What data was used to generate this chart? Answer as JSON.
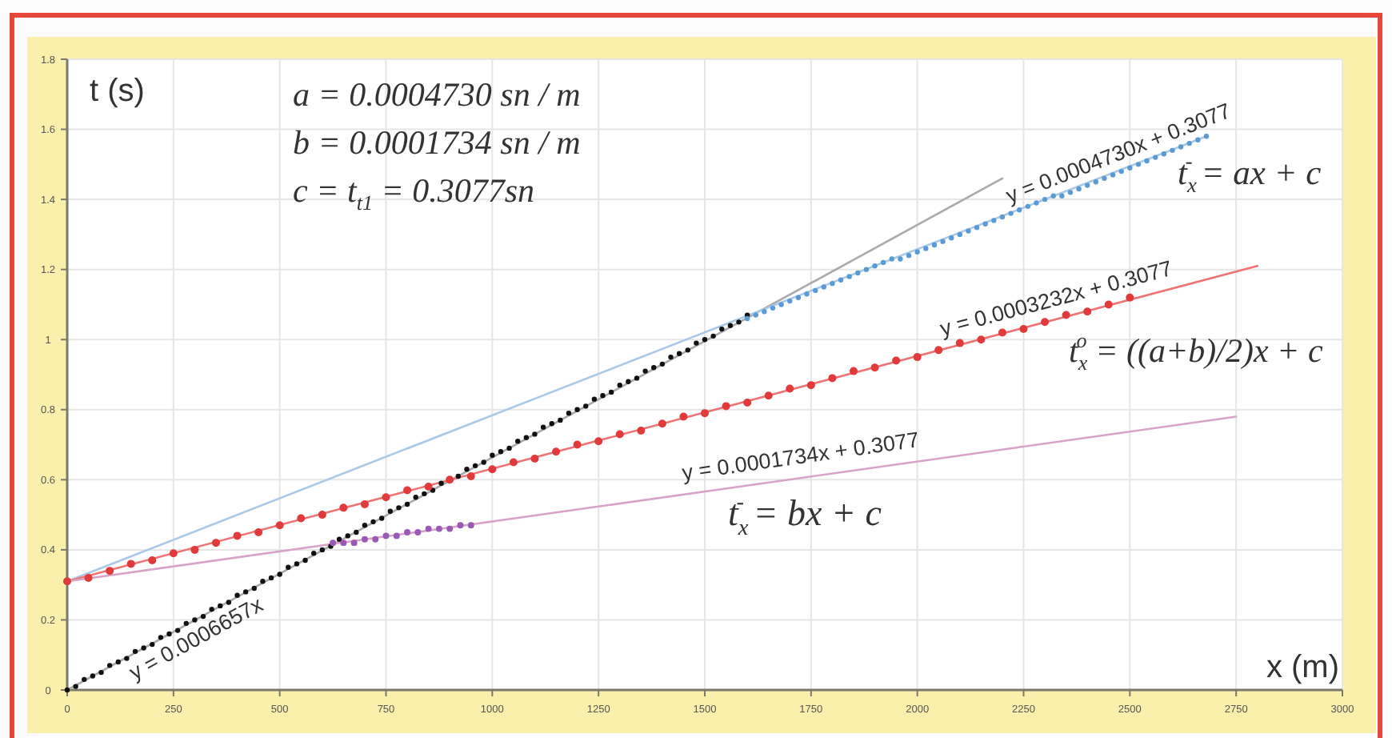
{
  "chart_data": {
    "type": "scatter",
    "xlabel": "x (m)",
    "ylabel": "t (s)",
    "xlim": [
      0,
      3000
    ],
    "ylim": [
      0,
      1.8
    ],
    "xticks": [
      0,
      250,
      500,
      750,
      1000,
      1250,
      1500,
      1750,
      2000,
      2250,
      2500,
      2750,
      3000
    ],
    "yticks": [
      0,
      0.2,
      0.4,
      0.6,
      0.8,
      1,
      1.2,
      1.4,
      1.6,
      1.8
    ],
    "grid": true,
    "marker": "circle",
    "line_style": "solid",
    "series": [
      {
        "type": "line",
        "marker": "none",
        "color": "#aaaaaa",
        "x": [
          0,
          2200
        ],
        "values": [
          0,
          1.46
        ]
      },
      {
        "type": "line",
        "marker": "none",
        "color": "#a9c9e6",
        "x": [
          0,
          2680
        ],
        "values": [
          0.31,
          1.58
        ]
      },
      {
        "type": "line",
        "marker": "none",
        "color": "#ee7474",
        "x": [
          0,
          2800
        ],
        "values": [
          0.31,
          1.21
        ]
      },
      {
        "type": "line",
        "marker": "none",
        "color": "#d9a3c9",
        "x": [
          0,
          2750
        ],
        "values": [
          0.31,
          0.78
        ]
      },
      {
        "color": "#111111",
        "x": [
          0,
          20,
          40,
          60,
          80,
          100,
          120,
          140,
          160,
          180,
          200,
          220,
          240,
          260,
          280,
          300,
          320,
          340,
          360,
          380,
          400,
          420,
          440,
          460,
          480,
          500,
          520,
          540,
          560,
          580,
          600,
          620,
          640,
          660,
          680,
          700,
          720,
          740,
          760,
          780,
          800,
          820,
          840,
          860,
          880,
          920,
          940,
          960,
          980,
          1000,
          1020,
          1040,
          1060,
          1080,
          1100,
          1120,
          1140,
          1160,
          1180,
          1200,
          1220,
          1240,
          1260,
          1280,
          1300,
          1320,
          1340,
          1360,
          1380,
          1400,
          1420,
          1440,
          1460,
          1480,
          1500,
          1520,
          1540,
          1560,
          1580,
          1600
        ],
        "values": [
          0,
          0.01,
          0.03,
          0.04,
          0.05,
          0.07,
          0.08,
          0.09,
          0.11,
          0.12,
          0.13,
          0.15,
          0.16,
          0.17,
          0.19,
          0.2,
          0.21,
          0.23,
          0.24,
          0.25,
          0.27,
          0.28,
          0.29,
          0.31,
          0.32,
          0.33,
          0.35,
          0.36,
          0.37,
          0.39,
          0.4,
          0.41,
          0.43,
          0.44,
          0.45,
          0.47,
          0.48,
          0.49,
          0.51,
          0.52,
          0.53,
          0.55,
          0.56,
          0.57,
          0.59,
          0.61,
          0.63,
          0.64,
          0.65,
          0.67,
          0.68,
          0.69,
          0.71,
          0.72,
          0.73,
          0.75,
          0.76,
          0.77,
          0.79,
          0.8,
          0.81,
          0.83,
          0.84,
          0.85,
          0.87,
          0.88,
          0.89,
          0.91,
          0.92,
          0.93,
          0.95,
          0.96,
          0.97,
          0.99,
          1,
          1.01,
          1.03,
          1.04,
          1.05,
          1.07
        ]
      },
      {
        "color": "#5b9bd5",
        "x": [
          1600,
          1620,
          1640,
          1660,
          1680,
          1700,
          1720,
          1740,
          1760,
          1780,
          1800,
          1820,
          1840,
          1860,
          1880,
          1900,
          1920,
          1940,
          1960,
          1980,
          2000,
          2020,
          2040,
          2060,
          2080,
          2100,
          2120,
          2140,
          2160,
          2180,
          2200,
          2220,
          2240,
          2260,
          2280,
          2300,
          2320,
          2340,
          2360,
          2380,
          2400,
          2420,
          2440,
          2460,
          2480,
          2500,
          2520,
          2540,
          2560,
          2580,
          2600,
          2620,
          2640,
          2660,
          2680
        ],
        "values": [
          1.06,
          1.07,
          1.08,
          1.09,
          1.1,
          1.11,
          1.12,
          1.13,
          1.14,
          1.15,
          1.16,
          1.17,
          1.18,
          1.19,
          1.2,
          1.21,
          1.22,
          1.23,
          1.23,
          1.24,
          1.25,
          1.26,
          1.27,
          1.28,
          1.29,
          1.3,
          1.31,
          1.32,
          1.33,
          1.34,
          1.35,
          1.36,
          1.37,
          1.38,
          1.39,
          1.4,
          1.41,
          1.41,
          1.42,
          1.43,
          1.44,
          1.45,
          1.46,
          1.47,
          1.48,
          1.49,
          1.5,
          1.51,
          1.52,
          1.53,
          1.54,
          1.55,
          1.56,
          1.57,
          1.58
        ]
      },
      {
        "color": "#e03a3a",
        "x": [
          0,
          50,
          100,
          150,
          200,
          250,
          300,
          350,
          400,
          450,
          500,
          550,
          600,
          650,
          700,
          750,
          800,
          850,
          900,
          950,
          1000,
          1050,
          1100,
          1150,
          1200,
          1250,
          1300,
          1350,
          1400,
          1450,
          1500,
          1550,
          1600,
          1650,
          1700,
          1750,
          1800,
          1850,
          1900,
          1950,
          2000,
          2050,
          2100,
          2150,
          2200,
          2250,
          2300,
          2350,
          2400,
          2450,
          2500
        ],
        "values": [
          0.31,
          0.32,
          0.34,
          0.36,
          0.37,
          0.39,
          0.4,
          0.42,
          0.44,
          0.45,
          0.47,
          0.49,
          0.5,
          0.52,
          0.53,
          0.55,
          0.57,
          0.58,
          0.6,
          0.61,
          0.63,
          0.65,
          0.66,
          0.68,
          0.7,
          0.71,
          0.73,
          0.74,
          0.76,
          0.78,
          0.79,
          0.81,
          0.82,
          0.84,
          0.86,
          0.87,
          0.89,
          0.91,
          0.92,
          0.94,
          0.95,
          0.97,
          0.99,
          1,
          1.02,
          1.03,
          1.05,
          1.07,
          1.08,
          1.1,
          1.12
        ]
      },
      {
        "color": "#9b59b6",
        "x": [
          625,
          650,
          675,
          700,
          725,
          750,
          775,
          800,
          825,
          850,
          875,
          900,
          925,
          950
        ],
        "values": [
          0.42,
          0.42,
          0.42,
          0.43,
          0.43,
          0.44,
          0.44,
          0.45,
          0.45,
          0.46,
          0.46,
          0.46,
          0.47,
          0.47
        ]
      }
    ],
    "annotations": [
      "y = 0.0006657x",
      "y = 0.0004730x + 0.3077",
      "y = 0.0003232x + 0.3077",
      "y = 0.0001734x + 0.3077",
      "a = 0.0004730 sn / m",
      "b = 0.0001734 sn / m",
      "c = t$_{t1}$ = 0.3077sn",
      "t$_{x}$$^{-}$ = ax + c",
      "t$_{x}$$^{o}$ = ((a+b)/2)x + c",
      "t$_{x}$$^{-}$ = bx + c"
    ]
  }
}
